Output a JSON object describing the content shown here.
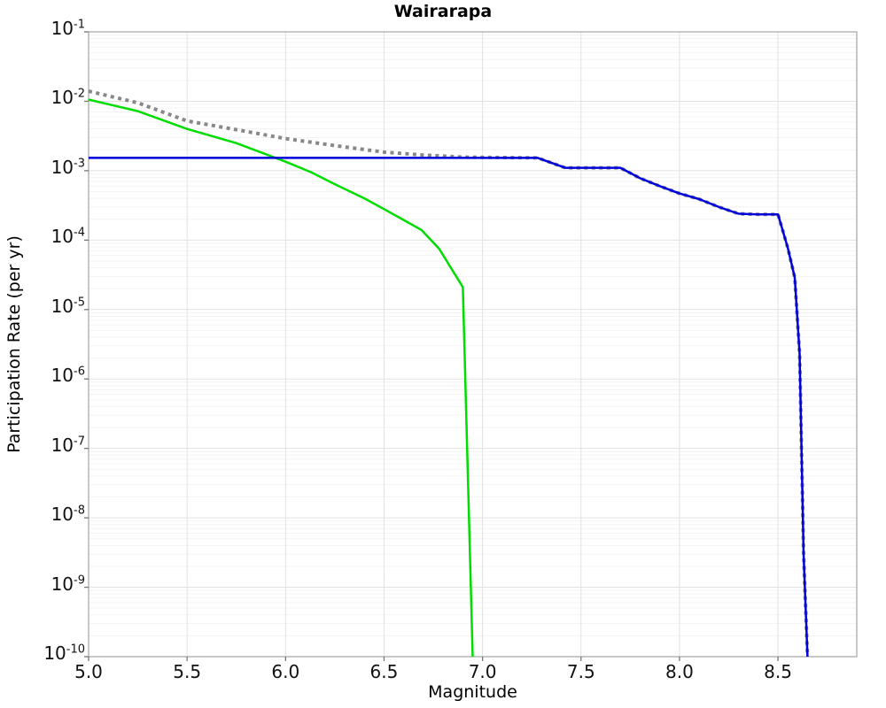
{
  "chart_data": {
    "type": "line",
    "title": "Wairarapa",
    "xlabel": "Magnitude",
    "ylabel": "Participation Rate (per yr)",
    "xlim": [
      5.0,
      8.9
    ],
    "y_log_range_exponents": [
      -1,
      -10
    ],
    "grid": "major decade lines + minor log lines (horizontal), 0.5-magnitude vertical lines",
    "legend_position": "none",
    "x_ticks": [
      "5.0",
      "5.5",
      "6.0",
      "6.5",
      "7.0",
      "7.5",
      "8.0",
      "8.5"
    ],
    "y_tick_exponents": [
      -1,
      -2,
      -3,
      -4,
      -5,
      -6,
      -7,
      -8,
      -9,
      -10
    ],
    "colors": {
      "blue_series": "#0000dd",
      "green_series": "#00dd00",
      "gray_dotted_series": "#888888",
      "grid_major": "#e2e2e2",
      "grid_minor": "#f3f3f3",
      "plot_border": "#aaaaaa",
      "tick_mark": "#777777",
      "background": "#ffffff"
    },
    "series": [
      {
        "name": "gray-dotted-total",
        "style": "dotted",
        "points": [
          [
            5.0,
            0.014
          ],
          [
            5.25,
            0.0095
          ],
          [
            5.5,
            0.0052
          ],
          [
            5.75,
            0.0039
          ],
          [
            6.0,
            0.0029
          ],
          [
            6.25,
            0.0023
          ],
          [
            6.5,
            0.00185
          ],
          [
            6.7,
            0.00168
          ],
          [
            6.9,
            0.00157
          ],
          [
            7.28,
            0.00153
          ],
          [
            7.42,
            0.0011
          ],
          [
            7.7,
            0.0011
          ],
          [
            7.8,
            0.00078
          ],
          [
            7.9,
            0.0006
          ],
          [
            8.0,
            0.00047
          ],
          [
            8.1,
            0.00039
          ],
          [
            8.2,
            0.0003
          ],
          [
            8.3,
            0.00024
          ],
          [
            8.4,
            0.000235
          ],
          [
            8.5,
            0.000235
          ],
          [
            8.55,
            7.7e-05
          ],
          [
            8.585,
            2.9e-05
          ],
          [
            8.61,
            2.3e-06
          ],
          [
            8.63,
            3e-09
          ],
          [
            8.65,
            1e-10
          ]
        ]
      },
      {
        "name": "green-solid",
        "style": "solid",
        "points": [
          [
            5.0,
            0.0106
          ],
          [
            5.25,
            0.0072
          ],
          [
            5.5,
            0.004
          ],
          [
            5.75,
            0.0025
          ],
          [
            6.0,
            0.00135
          ],
          [
            6.13,
            0.00095
          ],
          [
            6.25,
            0.00064
          ],
          [
            6.4,
            0.0004
          ],
          [
            6.5,
            0.00028
          ],
          [
            6.6,
            0.000195
          ],
          [
            6.69,
            0.00014
          ],
          [
            6.78,
            7.5e-05
          ],
          [
            6.88,
            2.6e-05
          ],
          [
            6.9,
            2.1e-05
          ],
          [
            6.95,
            1e-10
          ]
        ]
      },
      {
        "name": "blue-solid",
        "style": "solid",
        "points": [
          [
            5.0,
            0.00153
          ],
          [
            7.28,
            0.00153
          ],
          [
            7.42,
            0.0011
          ],
          [
            7.7,
            0.0011
          ],
          [
            7.8,
            0.00078
          ],
          [
            7.9,
            0.0006
          ],
          [
            8.0,
            0.00047
          ],
          [
            8.1,
            0.00039
          ],
          [
            8.2,
            0.0003
          ],
          [
            8.3,
            0.00024
          ],
          [
            8.4,
            0.000235
          ],
          [
            8.5,
            0.000235
          ],
          [
            8.55,
            7.7e-05
          ],
          [
            8.585,
            2.9e-05
          ],
          [
            8.61,
            2.3e-06
          ],
          [
            8.63,
            3e-09
          ],
          [
            8.65,
            1e-10
          ]
        ]
      }
    ]
  }
}
